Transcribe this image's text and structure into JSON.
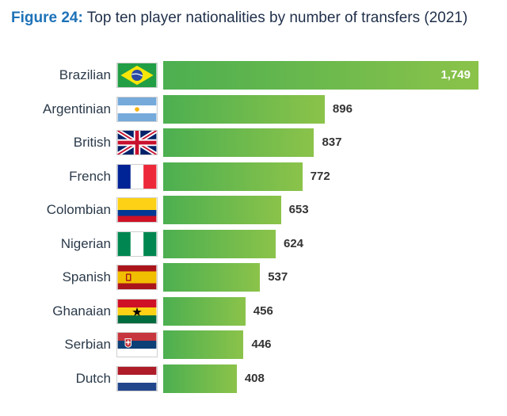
{
  "title": {
    "prefix": "Figure 24:",
    "text": "Top ten player nationalities by number of transfers (2021)"
  },
  "colors": {
    "bar_start": "#4caf50",
    "bar_end": "#8bc34a",
    "figure_label": "#1d72b8"
  },
  "chart_data": {
    "type": "bar",
    "orientation": "horizontal",
    "title": "Top ten player nationalities by number of transfers (2021)",
    "categories": [
      "Brazilian",
      "Argentinian",
      "British",
      "French",
      "Colombian",
      "Nigerian",
      "Spanish",
      "Ghanaian",
      "Serbian",
      "Dutch"
    ],
    "values": [
      1749,
      896,
      837,
      772,
      653,
      624,
      537,
      456,
      446,
      408
    ],
    "value_labels": [
      "1,749",
      "896",
      "837",
      "772",
      "653",
      "624",
      "537",
      "456",
      "446",
      "408"
    ],
    "flags": [
      "brazil-flag-icon",
      "argentina-flag-icon",
      "uk-flag-icon",
      "france-flag-icon",
      "colombia-flag-icon",
      "nigeria-flag-icon",
      "spain-flag-icon",
      "ghana-flag-icon",
      "serbia-flag-icon",
      "netherlands-flag-icon"
    ],
    "grid": false,
    "legend": "none"
  }
}
